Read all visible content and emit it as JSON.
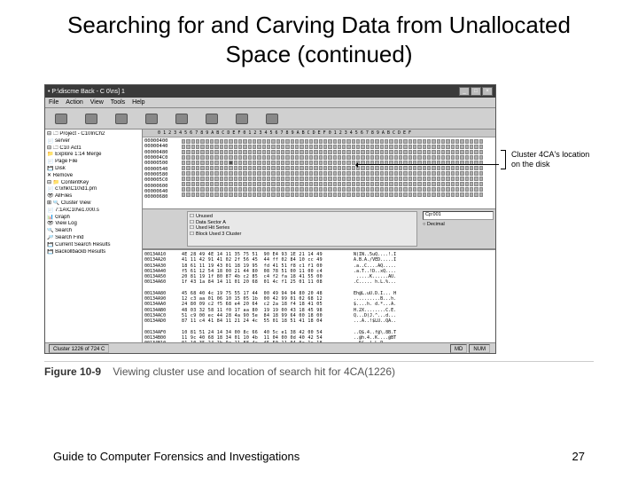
{
  "slide": {
    "title": "Searching for and Carving Data from Unallocated Space (continued)",
    "footer_text": "Guide to Computer Forensics and Investigations",
    "page_number": "27"
  },
  "window": {
    "title": "• P:\\discme Back - C 0\\ns] 1",
    "menus": [
      "File",
      "Action",
      "View",
      "Tools",
      "Help"
    ],
    "toolbar_items": [
      "New",
      "Open",
      "Save",
      "Print",
      "Add",
      "Search",
      "Report",
      "Export"
    ]
  },
  "tree": {
    "items": [
      "⊟ 🗀 Project - C10InCh2",
      "  📄 server",
      "  ⊟ 🗀 C10 Act1",
      "    📁 Explore 1:14 Merge",
      "      📄 Page File",
      "      💾 Disk",
      "    ✕ Remove",
      "    ⊟ 📁 ContentKey",
      "      📄 c:\\xhk\\C10\\d1.prn",
      "    👁 AllFiles",
      "    ⊞ 🔍 Cluster View",
      "      📄 7:1A\\C10\\e1.000.s",
      "    📊 Graph",
      "    👁 View Log",
      "  🔍 Search",
      "  🔎 Search Find",
      "    💾 Current Search Results",
      "    💾 Backollbackb Results"
    ]
  },
  "hex_header": "     0 1 2 3 4 5 6 7 8 9 A B C D E F 0 1 2 3 4 5 6 7 8 9 A B C D E F 0 1 2 3 4 5 6 7 8 9 A B C D E F",
  "offsets": [
    "00000400",
    "00000440",
    "00000480",
    "000004C0",
    "00000500",
    "00000540",
    "00000580",
    "000005C0",
    "00000600",
    "00000640",
    "00000680"
  ],
  "cluster_grid": {
    "rows": 11,
    "cols": 64,
    "marked_row": 4,
    "marked_col": 10
  },
  "mid": {
    "options": [
      "Unused",
      "Data Sector A",
      "Used Hit Series",
      "Block Used 3 Cluster"
    ],
    "input_value": "Cp:001",
    "radio_label": "Decimal"
  },
  "hex_dump": {
    "rows": [
      {
        "off": "00134A10",
        "b": "4E 28 49 4E 14 11 35 75 51  90 E4 93 1E 21 14 49",
        "a": "N(IN..5uQ....!.I"
      },
      {
        "off": "00134A20",
        "b": "41 11 42 91 41 02 2f 56 45  44 ff 02 84 10 cc 49",
        "a": "A.B.A./VED.....I"
      },
      {
        "off": "00134A30",
        "b": "18 61 11 19 43 01 18 19 95  fd 41 51 f8 c1 f1 00",
        "a": ".a..C....AQ....."
      },
      {
        "off": "00134A40",
        "b": "f5 61 12 54 18 00 21 44 80  08 78 51 00 11 00 c4",
        "a": ".a.T..!D..xQ...."
      },
      {
        "off": "00134A50",
        "b": "20 81 19 1f 80 87 4b c2 85  c4 f2 fa 18 41 55 00",
        "a": " .....K......AU."
      },
      {
        "off": "00134A60",
        "b": "1f 43 1a 84 14 11 01 20 68  01 4c f1 25 01 11 08",
        "a": ".C..... h.L.%..."
      },
      {
        "off": "00134A70",
        "b": "",
        "b2": "",
        "a": ""
      },
      {
        "off": "00134A80",
        "b": "45 68 40 4c 19 75 55 17 44  00 49 94 94 80 20 48",
        "a": "Eh@L.uU.D.I... H"
      },
      {
        "off": "00134A90",
        "b": "12 c3 aa 01 06 10 15 05 1b  00 42 99 01 02 68 12",
        "a": "..........B...h."
      },
      {
        "off": "00134AA0",
        "b": "24 80 09 c2 f5 68 e4 20 64  c2 2a 18 f4 18 41 05",
        "a": "$....h. d.*...A."
      },
      {
        "off": "00134AB0",
        "b": "48 03 32 58 11 f0 17 aa 80  19 19 00 43 18 45 98",
        "a": "H.2X........C.E."
      },
      {
        "off": "00134AC0",
        "b": "51 c9 00 ec 44 28 4a 90 5e  84 18 99 64 00 18 00",
        "a": "Q...D(J.^...d..."
      },
      {
        "off": "00134AD0",
        "b": "87 11 c4 41 84 11 21 24 4c  55 01 18 51 41 18 04",
        "a": "...A..!$LU..QA.."
      },
      {
        "off": "00134AE0",
        "b": "",
        "b2": "",
        "a": ""
      },
      {
        "off": "00134AF0",
        "b": "10 81 51 24 14 34 00 8c 66  40 5c e1 38 42 00 54",
        "a": "..Q$.4..f@\\.8B.T"
      },
      {
        "off": "00134B00",
        "b": "11 9c 40 68 18 34 01 10 4b  11 04 00 0d 40 42 54",
        "a": "..@h.4..K....@BT"
      },
      {
        "off": "00134B10",
        "b": "01 10 35 24 1b 9a 21 88 4c  f5 50 11 04 0a 1c 18",
        "a": "..5$..!.L.P....."
      }
    ]
  },
  "status": {
    "left": "Cluster 1226 of 724 C",
    "mid": "MD",
    "right": "NUM"
  },
  "callout": {
    "text": "Cluster 4CA's location on the disk"
  },
  "caption": {
    "number": "Figure 10-9",
    "text": "Viewing cluster use and location of search hit for 4CA(1226)"
  },
  "colors": {
    "window_bg": "#c8c8c8",
    "titlebar_bg": "#3a3a3a",
    "cell_bg": "#b0b0b0",
    "cell_marked": "#505050"
  }
}
